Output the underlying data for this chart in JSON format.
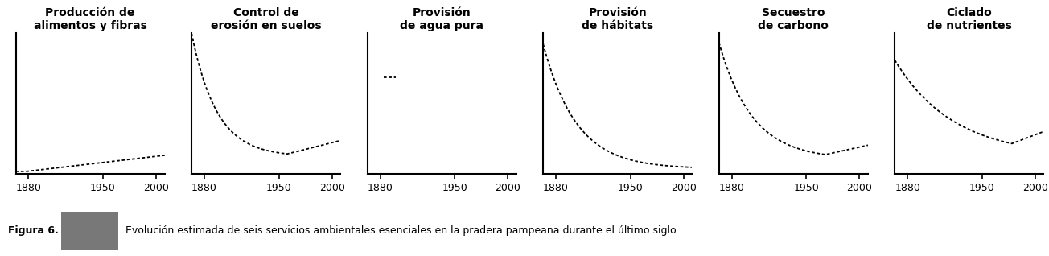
{
  "panels": [
    {
      "title": "Producción de\nalimentos y fibras",
      "curve_type": "step_up_slow"
    },
    {
      "title": "Control de\nerosión en suelos",
      "curve_type": "decay_with_uptick"
    },
    {
      "title": "Provisión\nde agua pura",
      "curve_type": "nearly_flat_with_dash"
    },
    {
      "title": "Provisión\nde hábitats",
      "curve_type": "decay_steep_full"
    },
    {
      "title": "Secuestro\nde carbono",
      "curve_type": "decay_medium_uptick"
    },
    {
      "title": "Ciclado\nde nutrientes",
      "curve_type": "decay_slow_uptick"
    }
  ],
  "x_ticks": [
    1880,
    1950,
    2000
  ],
  "x_min": 1868,
  "x_max": 2008,
  "y_min": 0.0,
  "y_max": 1.05,
  "background_color": "#ffffff",
  "line_color": "#000000",
  "line_width": 1.3,
  "title_fontsize": 10,
  "tick_fontsize": 9,
  "caption_label": "Figura 6.",
  "caption_text": "Evolución estimada de seis servicios ambientales esenciales en la pradera pampeana durante el último siglo",
  "caption_fontsize": 9,
  "rect_color": "#787878"
}
